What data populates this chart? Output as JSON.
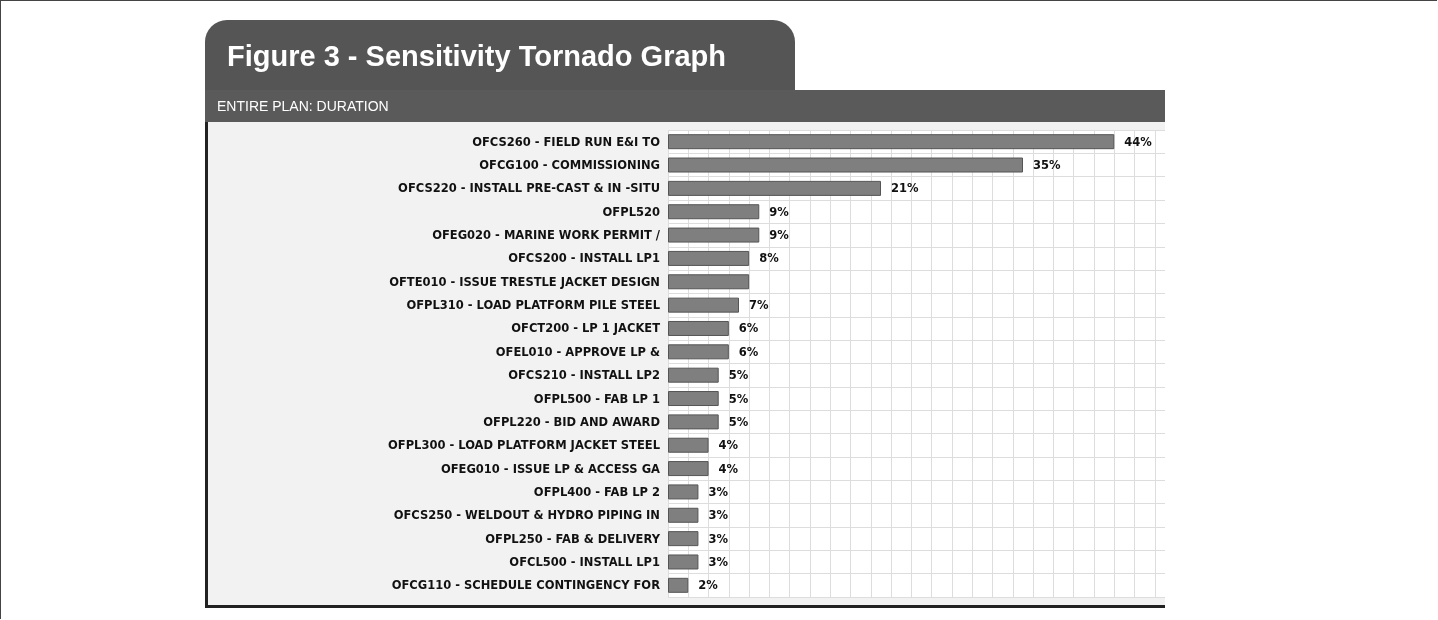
{
  "chart_data": {
    "type": "bar",
    "orientation": "horizontal",
    "title": "Figure 3 - Sensitivity Tornado Graph",
    "subtitle": "ENTIRE PLAN: DURATION",
    "categories": [
      "OFCS260 - FIELD RUN E&I TO",
      "OFCG100 - COMMISSIONING",
      "OFCS220 - INSTALL PRE-CAST & IN -SITU",
      "OFPL520",
      "OFEG020 - MARINE WORK PERMIT /",
      "OFCS200 - INSTALL LP1",
      "OFTE010 - ISSUE TRESTLE JACKET DESIGN",
      "OFPL310 - LOAD PLATFORM PILE STEEL",
      "OFCT200 - LP 1 JACKET",
      "OFEL010 - APPROVE LP &",
      "OFCS210 - INSTALL LP2",
      "OFPL500 - FAB LP 1",
      "OFPL220 - BID AND AWARD",
      "OFPL300 - LOAD PLATFORM JACKET STEEL",
      "OFEG010 - ISSUE LP & ACCESS GA",
      "OFPL400 - FAB LP 2",
      "OFCS250 - WELDOUT & HYDRO PIPING IN",
      "OFPL250 - FAB & DELIVERY",
      "OFCL500 - INSTALL LP1",
      "OFCG110 - SCHEDULE CONTINGENCY FOR"
    ],
    "values": [
      44,
      35,
      21,
      9,
      9,
      8,
      8,
      7,
      6,
      6,
      5,
      5,
      5,
      4,
      4,
      3,
      3,
      3,
      3,
      2
    ],
    "value_labels": [
      "44%",
      "35%",
      "21%",
      "9%",
      "9%",
      "8%",
      null,
      "7%",
      "6%",
      "6%",
      "5%",
      "5%",
      "5%",
      "4%",
      "4%",
      "3%",
      "3%",
      "3%",
      "3%",
      "2%"
    ],
    "color": "#7f7f7f",
    "xlim": [
      0,
      49
    ],
    "grid": true,
    "tick_labels": "y"
  }
}
